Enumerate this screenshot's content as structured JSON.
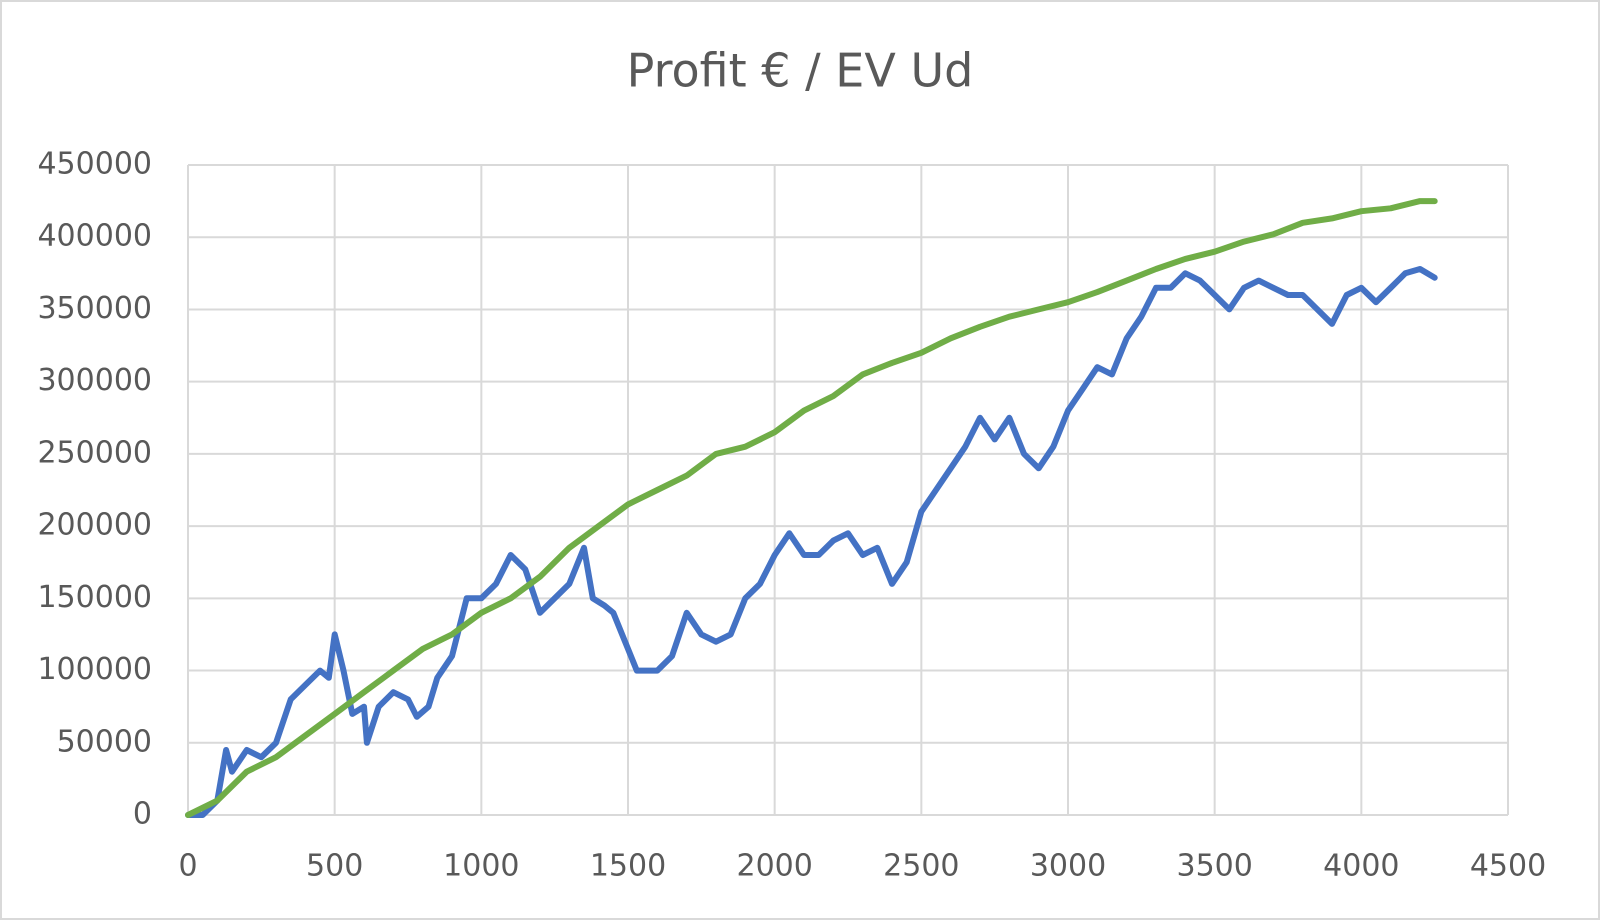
{
  "chart_data": {
    "type": "line",
    "title": "Profit € / EV Ud",
    "xlim": [
      0,
      4500
    ],
    "xticks": [
      0,
      500,
      1000,
      1500,
      2000,
      2500,
      3000,
      3500,
      4000,
      4500
    ],
    "ylim": [
      0,
      450000
    ],
    "yticks": [
      0,
      50000,
      100000,
      150000,
      200000,
      250000,
      300000,
      350000,
      400000,
      450000
    ],
    "grid": true,
    "series": [
      {
        "color": "#4472c4",
        "x": [
          0,
          50,
          100,
          130,
          150,
          200,
          250,
          300,
          350,
          400,
          450,
          480,
          500,
          530,
          560,
          600,
          610,
          650,
          700,
          750,
          780,
          820,
          850,
          900,
          950,
          1000,
          1050,
          1100,
          1150,
          1200,
          1250,
          1300,
          1350,
          1380,
          1420,
          1450,
          1500,
          1530,
          1600,
          1650,
          1700,
          1750,
          1800,
          1850,
          1900,
          1950,
          2000,
          2050,
          2100,
          2150,
          2200,
          2250,
          2300,
          2350,
          2400,
          2450,
          2500,
          2550,
          2600,
          2650,
          2700,
          2750,
          2800,
          2850,
          2900,
          2950,
          3000,
          3050,
          3100,
          3150,
          3200,
          3250,
          3300,
          3350,
          3400,
          3450,
          3500,
          3550,
          3600,
          3650,
          3700,
          3750,
          3800,
          3850,
          3900,
          3950,
          4000,
          4050,
          4100,
          4150,
          4200,
          4250
        ],
        "values": [
          0,
          0,
          10000,
          45000,
          30000,
          45000,
          40000,
          50000,
          80000,
          90000,
          100000,
          95000,
          125000,
          100000,
          70000,
          75000,
          50000,
          75000,
          85000,
          80000,
          68000,
          75000,
          95000,
          110000,
          150000,
          150000,
          160000,
          180000,
          170000,
          140000,
          150000,
          160000,
          185000,
          150000,
          145000,
          140000,
          115000,
          100000,
          100000,
          110000,
          140000,
          125000,
          120000,
          125000,
          150000,
          160000,
          180000,
          195000,
          180000,
          180000,
          190000,
          195000,
          180000,
          185000,
          160000,
          175000,
          210000,
          225000,
          240000,
          255000,
          275000,
          260000,
          275000,
          250000,
          240000,
          255000,
          280000,
          295000,
          310000,
          305000,
          330000,
          345000,
          365000,
          365000,
          375000,
          370000,
          360000,
          350000,
          365000,
          370000,
          365000,
          360000,
          360000,
          350000,
          340000,
          360000,
          365000,
          355000,
          365000,
          375000,
          378000,
          372000
        ]
      },
      {
        "color": "#70ad47",
        "x": [
          0,
          100,
          200,
          300,
          400,
          500,
          600,
          700,
          800,
          900,
          1000,
          1100,
          1200,
          1300,
          1400,
          1500,
          1600,
          1700,
          1800,
          1900,
          2000,
          2100,
          2200,
          2300,
          2400,
          2500,
          2600,
          2700,
          2800,
          2900,
          3000,
          3100,
          3200,
          3300,
          3400,
          3500,
          3600,
          3700,
          3800,
          3900,
          4000,
          4100,
          4200,
          4250
        ],
        "values": [
          0,
          10000,
          30000,
          40000,
          55000,
          70000,
          85000,
          100000,
          115000,
          125000,
          140000,
          150000,
          165000,
          185000,
          200000,
          215000,
          225000,
          235000,
          250000,
          255000,
          265000,
          280000,
          290000,
          305000,
          313000,
          320000,
          330000,
          338000,
          345000,
          350000,
          355000,
          362000,
          370000,
          378000,
          385000,
          390000,
          397000,
          402000,
          410000,
          413000,
          418000,
          420000,
          425000,
          425000
        ]
      }
    ]
  }
}
